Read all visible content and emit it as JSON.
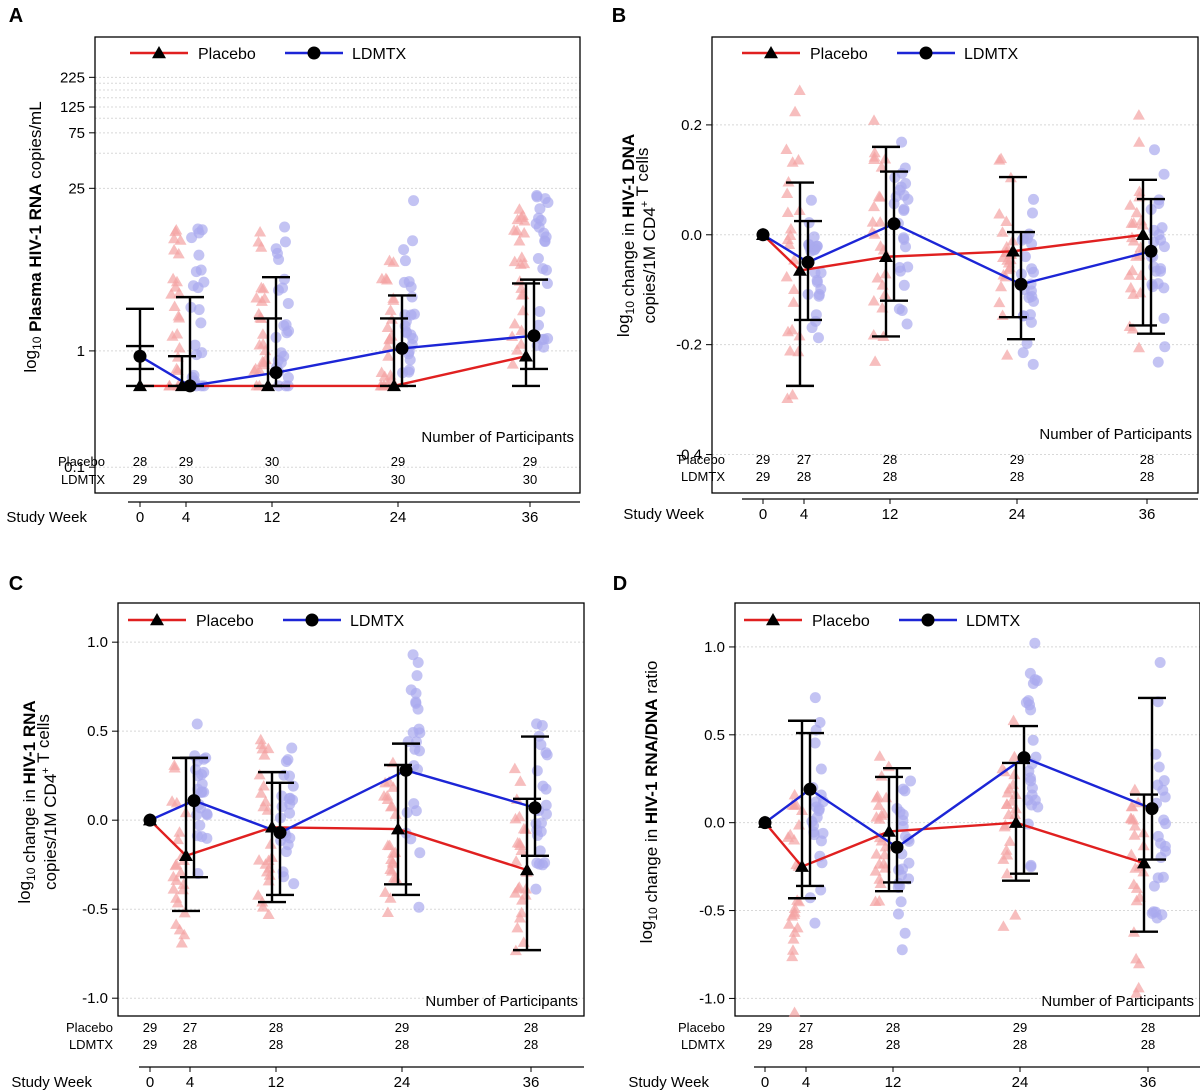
{
  "figure": {
    "colors": {
      "placebo": "#e02020",
      "ldmtx": "#1c25d6",
      "placebo_point": "#f3a3a3",
      "ldmtx_point": "#aaaaee",
      "errorbar": "#000000",
      "grid": "#d8d8d8"
    },
    "legend": {
      "placebo": "Placebo",
      "ldmtx": "LDMTX"
    },
    "number_of_participants_label": "Number of Participants",
    "study_week_label": "Study Week",
    "row_labels": {
      "placebo": "Placebo",
      "ldmtx": "LDMTX"
    }
  },
  "chart_data": [
    {
      "panel": "A",
      "type": "line",
      "scale": "log",
      "ylabel_prefix": "log",
      "ylabel_sub": "10",
      "ylabel_lines": [
        [
          {
            "t": " Plasma HIV-1 RNA",
            "b": true
          },
          {
            "t": " copies/mL",
            "b": false
          }
        ]
      ],
      "yticks": [
        0.1,
        1,
        25,
        75,
        125,
        225
      ],
      "ytick_labels": [
        "0.1",
        "1",
        "25",
        "75",
        "125",
        "225"
      ],
      "ylim": [
        0.06,
        500
      ],
      "x": [
        0,
        4,
        12,
        24,
        36
      ],
      "x_labels": [
        "0",
        "4",
        "12",
        "24",
        "36"
      ],
      "series": [
        {
          "name": "Placebo",
          "values": [
            0.5,
            0.5,
            0.5,
            0.5,
            0.9
          ],
          "lower": [
            0.5,
            0.5,
            0.5,
            0.5,
            0.5
          ],
          "upper": [
            1.1,
            0.9,
            1.9,
            1.9,
            3.8
          ]
        },
        {
          "name": "LDMTX",
          "values": [
            0.9,
            0.5,
            0.65,
            1.05,
            1.35
          ],
          "lower": [
            0.7,
            0.5,
            0.5,
            0.5,
            0.7
          ],
          "upper": [
            2.3,
            2.9,
            4.3,
            3.0,
            4.1
          ]
        }
      ],
      "counts": {
        "placebo": [
          "28",
          "29",
          "30",
          "29",
          "29"
        ],
        "ldmtx": [
          "29",
          "30",
          "30",
          "30",
          "30"
        ]
      }
    },
    {
      "panel": "B",
      "type": "line",
      "scale": "linear",
      "ylabel_prefix": "log",
      "ylabel_sub": "10",
      "ylabel_lines": [
        [
          {
            "t": " change in ",
            "b": false
          },
          {
            "t": "HIV-1 DNA",
            "b": true
          }
        ],
        [
          {
            "t": "copies/1M CD4",
            "b": false
          },
          {
            "t": "+",
            "b": false,
            "sup": true
          },
          {
            "t": " T cells",
            "b": false
          }
        ]
      ],
      "yticks": [
        -0.4,
        -0.2,
        0.0,
        0.2
      ],
      "ytick_labels": [
        "-0.4",
        "-0.2",
        "0.0",
        "0.2"
      ],
      "ylim": [
        -0.47,
        0.36
      ],
      "x": [
        0,
        4,
        12,
        24,
        36
      ],
      "x_labels": [
        "0",
        "4",
        "12",
        "24",
        "36"
      ],
      "series": [
        {
          "name": "Placebo",
          "values": [
            0.0,
            -0.065,
            -0.04,
            -0.03,
            0.0
          ],
          "lower": [
            0.0,
            -0.275,
            -0.185,
            -0.15,
            -0.165
          ],
          "upper": [
            0.0,
            0.095,
            0.16,
            0.105,
            0.1
          ]
        },
        {
          "name": "LDMTX",
          "values": [
            0.0,
            -0.05,
            0.02,
            -0.09,
            -0.03
          ],
          "lower": [
            0.0,
            -0.155,
            -0.12,
            -0.19,
            -0.18
          ],
          "upper": [
            0.0,
            0.025,
            0.115,
            0.005,
            0.065
          ]
        }
      ],
      "counts": {
        "placebo": [
          "29",
          "27",
          "28",
          "29",
          "28"
        ],
        "ldmtx": [
          "29",
          "28",
          "28",
          "28",
          "28"
        ]
      }
    },
    {
      "panel": "C",
      "type": "line",
      "scale": "linear",
      "ylabel_prefix": "log",
      "ylabel_sub": "10",
      "ylabel_lines": [
        [
          {
            "t": " change in ",
            "b": false
          },
          {
            "t": "HIV-1 RNA",
            "b": true
          }
        ],
        [
          {
            "t": "copies/1M CD4",
            "b": false
          },
          {
            "t": "+",
            "b": false,
            "sup": true
          },
          {
            "t": " T cells",
            "b": false
          }
        ]
      ],
      "yticks": [
        -1.0,
        -0.5,
        0.0,
        0.5,
        1.0
      ],
      "ytick_labels": [
        "-1.0",
        "-0.5",
        "0.0",
        "0.5",
        "1.0"
      ],
      "ylim": [
        -1.1,
        1.22
      ],
      "x": [
        0,
        4,
        12,
        24,
        36
      ],
      "x_labels": [
        "0",
        "4",
        "12",
        "24",
        "36"
      ],
      "series": [
        {
          "name": "Placebo",
          "values": [
            0.0,
            -0.2,
            -0.04,
            -0.05,
            -0.28
          ],
          "lower": [
            0.0,
            -0.51,
            -0.46,
            -0.36,
            -0.73
          ],
          "upper": [
            0.0,
            0.35,
            0.27,
            0.31,
            0.12
          ]
        },
        {
          "name": "LDMTX",
          "values": [
            0.0,
            0.11,
            -0.07,
            0.28,
            0.07
          ],
          "lower": [
            0.0,
            -0.32,
            -0.42,
            -0.42,
            -0.2
          ],
          "upper": [
            0.0,
            0.35,
            0.21,
            0.43,
            0.47
          ]
        }
      ],
      "counts": {
        "placebo": [
          "29",
          "27",
          "28",
          "29",
          "28"
        ],
        "ldmtx": [
          "29",
          "28",
          "28",
          "28",
          "28"
        ]
      }
    },
    {
      "panel": "D",
      "type": "line",
      "scale": "linear",
      "ylabel_prefix": "log",
      "ylabel_sub": "10",
      "ylabel_lines": [
        [
          {
            "t": " change in ",
            "b": false
          },
          {
            "t": "HIV-1 RNA/DNA",
            "b": true
          },
          {
            "t": " ratio",
            "b": false
          }
        ]
      ],
      "yticks": [
        -1.0,
        -0.5,
        0.0,
        0.5,
        1.0
      ],
      "ytick_labels": [
        "-1.0",
        "-0.5",
        "0.0",
        "0.5",
        "1.0"
      ],
      "ylim": [
        -1.1,
        1.25
      ],
      "x": [
        0,
        4,
        12,
        24,
        36
      ],
      "x_labels": [
        "0",
        "4",
        "12",
        "24",
        "36"
      ],
      "series": [
        {
          "name": "Placebo",
          "values": [
            0.0,
            -0.25,
            -0.05,
            0.0,
            -0.23
          ],
          "lower": [
            0.0,
            -0.43,
            -0.39,
            -0.33,
            -0.62
          ],
          "upper": [
            0.0,
            0.58,
            0.26,
            0.34,
            0.16
          ]
        },
        {
          "name": "LDMTX",
          "values": [
            0.0,
            0.19,
            -0.14,
            0.37,
            0.08
          ],
          "lower": [
            0.0,
            -0.36,
            -0.34,
            -0.29,
            -0.21
          ],
          "upper": [
            0.0,
            0.51,
            0.31,
            0.55,
            0.71
          ]
        }
      ],
      "counts": {
        "placebo": [
          "29",
          "27",
          "28",
          "29",
          "28"
        ],
        "ldmtx": [
          "29",
          "28",
          "28",
          "28",
          "28"
        ]
      }
    }
  ]
}
